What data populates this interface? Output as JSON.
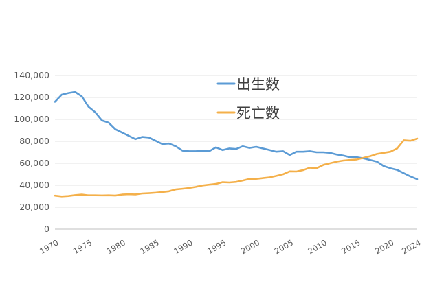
{
  "chart_data": {
    "type": "line",
    "title": "",
    "xlabel": "",
    "ylabel": "",
    "xlim": [
      1970,
      2024
    ],
    "ylim": [
      0,
      140000
    ],
    "y_ticks": [
      0,
      20000,
      40000,
      60000,
      80000,
      100000,
      120000,
      140000
    ],
    "y_tick_labels": [
      "0",
      "20,000",
      "40,000",
      "60,000",
      "80,000",
      "100,000",
      "120,000",
      "140,000"
    ],
    "x_ticks": [
      1970,
      1975,
      1980,
      1985,
      1990,
      1995,
      2000,
      2005,
      2010,
      2015,
      2020,
      2024
    ],
    "x_tick_labels": [
      "1970",
      "1975",
      "1980",
      "1985",
      "1990",
      "1995",
      "2000",
      "2005",
      "2010",
      "2015",
      "2020",
      "2024"
    ],
    "grid": true,
    "legend_position": "top-center",
    "x": [
      1970,
      1971,
      1972,
      1973,
      1974,
      1975,
      1976,
      1977,
      1978,
      1979,
      1980,
      1981,
      1982,
      1983,
      1984,
      1985,
      1986,
      1987,
      1988,
      1989,
      1990,
      1991,
      1992,
      1993,
      1994,
      1995,
      1996,
      1997,
      1998,
      1999,
      2000,
      2001,
      2002,
      2003,
      2004,
      2005,
      2006,
      2007,
      2008,
      2009,
      2010,
      2011,
      2012,
      2013,
      2014,
      2015,
      2016,
      2017,
      2018,
      2019,
      2020,
      2021,
      2022,
      2023,
      2024
    ],
    "series": [
      {
        "name": "出生数",
        "color": "#5b9bd5",
        "values": [
          116000,
          122500,
          124000,
          125000,
          121000,
          111500,
          106500,
          99000,
          97000,
          91000,
          88000,
          85000,
          82000,
          84000,
          83500,
          80500,
          77500,
          78000,
          75500,
          71500,
          71000,
          71000,
          71500,
          71000,
          74500,
          72000,
          73500,
          73000,
          75500,
          74000,
          75000,
          73500,
          72000,
          70500,
          71000,
          67500,
          70500,
          70500,
          71000,
          70000,
          70000,
          69500,
          68000,
          67000,
          65500,
          65500,
          64500,
          63000,
          61500,
          57500,
          55500,
          54000,
          51000,
          48000,
          45500
        ]
      },
      {
        "name": "死亡数",
        "color": "#f4b04a",
        "values": [
          30500,
          29800,
          30200,
          31000,
          31500,
          30800,
          30800,
          30700,
          30800,
          30600,
          31500,
          31800,
          31600,
          32500,
          32800,
          33200,
          33800,
          34500,
          36200,
          36800,
          37500,
          38500,
          39800,
          40500,
          41200,
          42800,
          42500,
          43000,
          44300,
          45800,
          45800,
          46500,
          47200,
          48500,
          50000,
          52600,
          52500,
          53800,
          56000,
          55500,
          58500,
          60000,
          61500,
          62500,
          63000,
          63500,
          65000,
          66500,
          68500,
          69500,
          70500,
          73500,
          81000,
          80500,
          82500
        ]
      }
    ]
  }
}
